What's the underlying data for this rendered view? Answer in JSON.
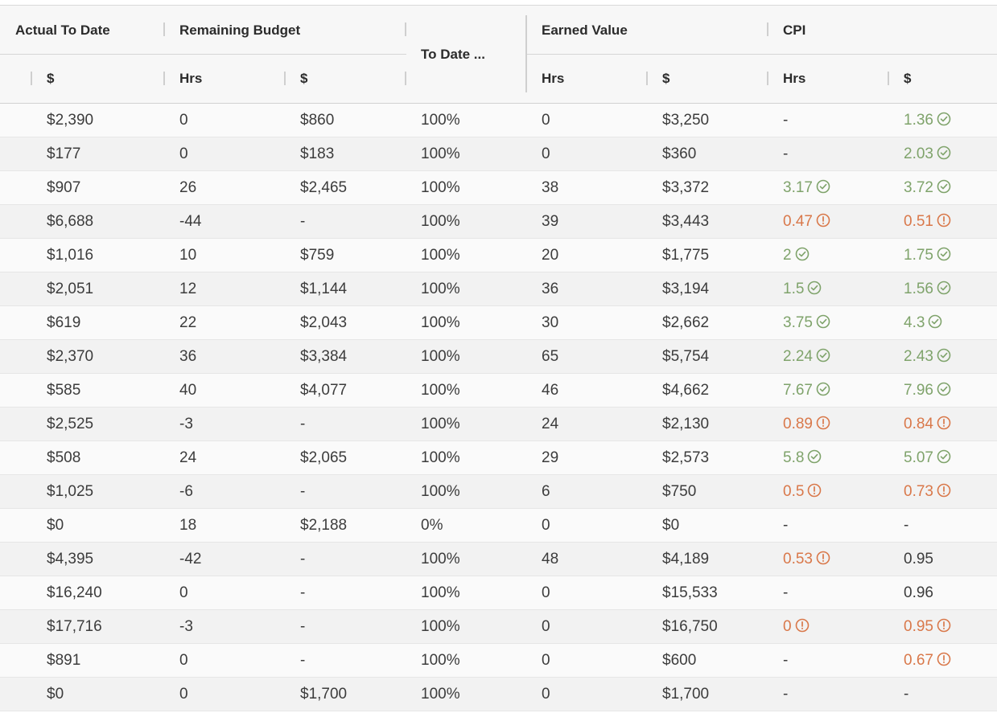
{
  "header": {
    "group_labels": {
      "actual_to_date": "Actual To Date",
      "remaining_budget": "Remaining Budget",
      "to_date_pct": "To Date ...",
      "earned_value": "Earned Value",
      "cpi": "CPI"
    },
    "sub_labels": {
      "actual_dollars": "$",
      "remaining_hrs": "Hrs",
      "remaining_dollars": "$",
      "earned_hrs": "Hrs",
      "earned_dollars": "$",
      "cpi_hrs": "Hrs",
      "cpi_dollars": "$"
    }
  },
  "colors": {
    "good": "#7fa36b",
    "bad": "#d9784a"
  },
  "rows": [
    {
      "actual": "$2,390",
      "rem_hrs": "0",
      "rem_dollars": "$860",
      "pct": "100%",
      "ev_hrs": "0",
      "ev_dollars": "$3,250",
      "cpi_hrs": "-",
      "cpi_hrs_status": "none",
      "cpi_dollars": "1.36",
      "cpi_dollars_status": "good"
    },
    {
      "actual": "$177",
      "rem_hrs": "0",
      "rem_dollars": "$183",
      "pct": "100%",
      "ev_hrs": "0",
      "ev_dollars": "$360",
      "cpi_hrs": "-",
      "cpi_hrs_status": "none",
      "cpi_dollars": "2.03",
      "cpi_dollars_status": "good"
    },
    {
      "actual": "$907",
      "rem_hrs": "26",
      "rem_dollars": "$2,465",
      "pct": "100%",
      "ev_hrs": "38",
      "ev_dollars": "$3,372",
      "cpi_hrs": "3.17",
      "cpi_hrs_status": "good",
      "cpi_dollars": "3.72",
      "cpi_dollars_status": "good"
    },
    {
      "actual": "$6,688",
      "rem_hrs": "-44",
      "rem_dollars": "-",
      "pct": "100%",
      "ev_hrs": "39",
      "ev_dollars": "$3,443",
      "cpi_hrs": "0.47",
      "cpi_hrs_status": "bad",
      "cpi_dollars": "0.51",
      "cpi_dollars_status": "bad"
    },
    {
      "actual": "$1,016",
      "rem_hrs": "10",
      "rem_dollars": "$759",
      "pct": "100%",
      "ev_hrs": "20",
      "ev_dollars": "$1,775",
      "cpi_hrs": "2",
      "cpi_hrs_status": "good",
      "cpi_dollars": "1.75",
      "cpi_dollars_status": "good"
    },
    {
      "actual": "$2,051",
      "rem_hrs": "12",
      "rem_dollars": "$1,144",
      "pct": "100%",
      "ev_hrs": "36",
      "ev_dollars": "$3,194",
      "cpi_hrs": "1.5",
      "cpi_hrs_status": "good",
      "cpi_dollars": "1.56",
      "cpi_dollars_status": "good"
    },
    {
      "actual": "$619",
      "rem_hrs": "22",
      "rem_dollars": "$2,043",
      "pct": "100%",
      "ev_hrs": "30",
      "ev_dollars": "$2,662",
      "cpi_hrs": "3.75",
      "cpi_hrs_status": "good",
      "cpi_dollars": "4.3",
      "cpi_dollars_status": "good"
    },
    {
      "actual": "$2,370",
      "rem_hrs": "36",
      "rem_dollars": "$3,384",
      "pct": "100%",
      "ev_hrs": "65",
      "ev_dollars": "$5,754",
      "cpi_hrs": "2.24",
      "cpi_hrs_status": "good",
      "cpi_dollars": "2.43",
      "cpi_dollars_status": "good"
    },
    {
      "actual": "$585",
      "rem_hrs": "40",
      "rem_dollars": "$4,077",
      "pct": "100%",
      "ev_hrs": "46",
      "ev_dollars": "$4,662",
      "cpi_hrs": "7.67",
      "cpi_hrs_status": "good",
      "cpi_dollars": "7.96",
      "cpi_dollars_status": "good"
    },
    {
      "actual": "$2,525",
      "rem_hrs": "-3",
      "rem_dollars": "-",
      "pct": "100%",
      "ev_hrs": "24",
      "ev_dollars": "$2,130",
      "cpi_hrs": "0.89",
      "cpi_hrs_status": "bad",
      "cpi_dollars": "0.84",
      "cpi_dollars_status": "bad"
    },
    {
      "actual": "$508",
      "rem_hrs": "24",
      "rem_dollars": "$2,065",
      "pct": "100%",
      "ev_hrs": "29",
      "ev_dollars": "$2,573",
      "cpi_hrs": "5.8",
      "cpi_hrs_status": "good",
      "cpi_dollars": "5.07",
      "cpi_dollars_status": "good"
    },
    {
      "actual": "$1,025",
      "rem_hrs": "-6",
      "rem_dollars": "-",
      "pct": "100%",
      "ev_hrs": "6",
      "ev_dollars": "$750",
      "cpi_hrs": "0.5",
      "cpi_hrs_status": "bad",
      "cpi_dollars": "0.73",
      "cpi_dollars_status": "bad"
    },
    {
      "actual": "$0",
      "rem_hrs": "18",
      "rem_dollars": "$2,188",
      "pct": "0%",
      "ev_hrs": "0",
      "ev_dollars": "$0",
      "cpi_hrs": "-",
      "cpi_hrs_status": "none",
      "cpi_dollars": "-",
      "cpi_dollars_status": "none"
    },
    {
      "actual": "$4,395",
      "rem_hrs": "-42",
      "rem_dollars": "-",
      "pct": "100%",
      "ev_hrs": "48",
      "ev_dollars": "$4,189",
      "cpi_hrs": "0.53",
      "cpi_hrs_status": "bad",
      "cpi_dollars": "0.95",
      "cpi_dollars_status": "none"
    },
    {
      "actual": "$16,240",
      "rem_hrs": "0",
      "rem_dollars": "-",
      "pct": "100%",
      "ev_hrs": "0",
      "ev_dollars": "$15,533",
      "cpi_hrs": "-",
      "cpi_hrs_status": "none",
      "cpi_dollars": "0.96",
      "cpi_dollars_status": "none"
    },
    {
      "actual": "$17,716",
      "rem_hrs": "-3",
      "rem_dollars": "-",
      "pct": "100%",
      "ev_hrs": "0",
      "ev_dollars": "$16,750",
      "cpi_hrs": "0",
      "cpi_hrs_status": "bad",
      "cpi_dollars": "0.95",
      "cpi_dollars_status": "bad"
    },
    {
      "actual": "$891",
      "rem_hrs": "0",
      "rem_dollars": "-",
      "pct": "100%",
      "ev_hrs": "0",
      "ev_dollars": "$600",
      "cpi_hrs": "-",
      "cpi_hrs_status": "none",
      "cpi_dollars": "0.67",
      "cpi_dollars_status": "bad"
    },
    {
      "actual": "$0",
      "rem_hrs": "0",
      "rem_dollars": "$1,700",
      "pct": "100%",
      "ev_hrs": "0",
      "ev_dollars": "$1,700",
      "cpi_hrs": "-",
      "cpi_hrs_status": "none",
      "cpi_dollars": "-",
      "cpi_dollars_status": "none"
    }
  ]
}
